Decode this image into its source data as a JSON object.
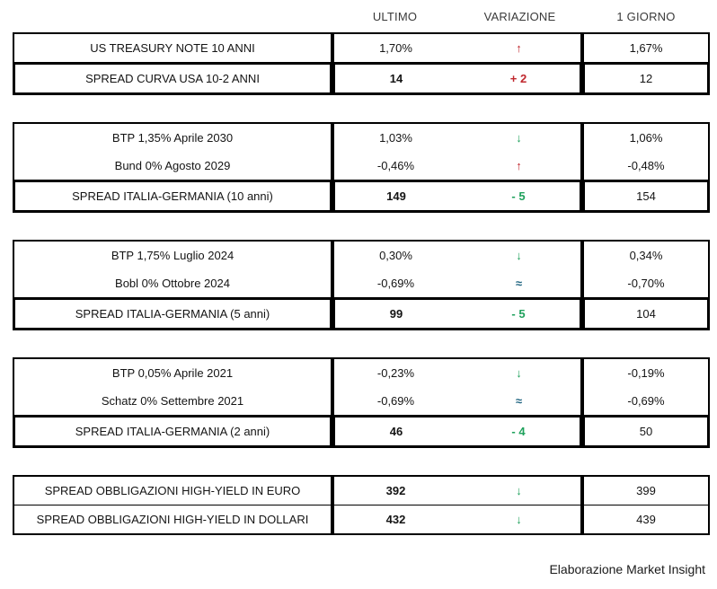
{
  "header": {
    "columns": [
      "ULTIMO",
      "VARIAZIONE",
      "1 GIORNO"
    ]
  },
  "colors": {
    "up": "#C0272D",
    "down": "#1FA15C",
    "flat": "#1F6480"
  },
  "groups": [
    {
      "rows": [
        {
          "label": "US TREASURY NOTE 10 ANNI",
          "ultimo": "1,70%",
          "variation": {
            "icon": "arrow-up-icon",
            "direction": "up"
          },
          "giorno": "1,67%",
          "spread": false
        },
        {
          "label": "SPREAD CURVA USA 10-2 ANNI",
          "ultimo": "14",
          "variation": {
            "value": "+ 2",
            "direction": "up"
          },
          "giorno": "12",
          "spread": true
        }
      ]
    },
    {
      "rows": [
        {
          "label": "BTP 1,35% Aprile 2030",
          "ultimo": "1,03%",
          "variation": {
            "icon": "arrow-down-icon",
            "direction": "down"
          },
          "giorno": "1,06%",
          "spread": false
        },
        {
          "label": "Bund 0% Agosto 2029",
          "ultimo": "-0,46%",
          "variation": {
            "icon": "arrow-up-icon",
            "direction": "up"
          },
          "giorno": "-0,48%",
          "spread": false
        },
        {
          "label": "SPREAD ITALIA-GERMANIA (10 anni)",
          "ultimo": "149",
          "variation": {
            "value": "- 5",
            "direction": "down"
          },
          "giorno": "154",
          "spread": true
        }
      ]
    },
    {
      "rows": [
        {
          "label": "BTP 1,75% Luglio 2024",
          "ultimo": "0,30%",
          "variation": {
            "icon": "arrow-down-icon",
            "direction": "down"
          },
          "giorno": "0,34%",
          "spread": false
        },
        {
          "label": "Bobl 0% Ottobre 2024",
          "ultimo": "-0,69%",
          "variation": {
            "icon": "approx-icon",
            "direction": "flat"
          },
          "giorno": "-0,70%",
          "spread": false
        },
        {
          "label": "SPREAD ITALIA-GERMANIA (5 anni)",
          "ultimo": "99",
          "variation": {
            "value": "- 5",
            "direction": "down"
          },
          "giorno": "104",
          "spread": true
        }
      ]
    },
    {
      "rows": [
        {
          "label": "BTP 0,05% Aprile 2021",
          "ultimo": "-0,23%",
          "variation": {
            "icon": "arrow-down-icon",
            "direction": "down"
          },
          "giorno": "-0,19%",
          "spread": false
        },
        {
          "label": "Schatz 0% Settembre 2021",
          "ultimo": "-0,69%",
          "variation": {
            "icon": "approx-icon",
            "direction": "flat"
          },
          "giorno": "-0,69%",
          "spread": false
        },
        {
          "label": "SPREAD ITALIA-GERMANIA (2 anni)",
          "ultimo": "46",
          "variation": {
            "value": "- 4",
            "direction": "down"
          },
          "giorno": "50",
          "spread": true
        }
      ]
    },
    {
      "rows": [
        {
          "label": "SPREAD OBBLIGAZIONI HIGH-YIELD IN EURO",
          "ultimo": "392",
          "variation": {
            "icon": "arrow-down-icon",
            "direction": "down"
          },
          "giorno": "399",
          "spread": true
        },
        {
          "label": "SPREAD OBBLIGAZIONI HIGH-YIELD IN DOLLARI",
          "ultimo": "432",
          "variation": {
            "icon": "arrow-down-icon",
            "direction": "down"
          },
          "giorno": "439",
          "spread": true
        }
      ]
    }
  ],
  "footer": "Elaborazione Market Insight",
  "chart_data": {
    "type": "table",
    "columns": [
      "",
      "ULTIMO",
      "VARIAZIONE",
      "1 GIORNO"
    ],
    "rows": [
      [
        "US TREASURY NOTE 10 ANNI",
        "1,70%",
        "up",
        "1,67%"
      ],
      [
        "SPREAD CURVA USA 10-2 ANNI",
        "14",
        "+ 2",
        "12"
      ],
      [
        "BTP 1,35% Aprile 2030",
        "1,03%",
        "down",
        "1,06%"
      ],
      [
        "Bund 0% Agosto 2029",
        "-0,46%",
        "up",
        "-0,48%"
      ],
      [
        "SPREAD ITALIA-GERMANIA (10 anni)",
        "149",
        "- 5",
        "154"
      ],
      [
        "BTP 1,75% Luglio 2024",
        "0,30%",
        "down",
        "0,34%"
      ],
      [
        "Bobl 0% Ottobre 2024",
        "-0,69%",
        "flat",
        "-0,70%"
      ],
      [
        "SPREAD ITALIA-GERMANIA (5 anni)",
        "99",
        "- 5",
        "104"
      ],
      [
        "BTP 0,05% Aprile 2021",
        "-0,23%",
        "down",
        "-0,19%"
      ],
      [
        "Schatz 0% Settembre 2021",
        "-0,69%",
        "flat",
        "-0,69%"
      ],
      [
        "SPREAD ITALIA-GERMANIA (2 anni)",
        "46",
        "- 4",
        "50"
      ],
      [
        "SPREAD OBBLIGAZIONI HIGH-YIELD IN EURO",
        "392",
        "down",
        "399"
      ],
      [
        "SPREAD OBBLIGAZIONI HIGH-YIELD IN DOLLARI",
        "432",
        "down",
        "439"
      ]
    ],
    "title": "",
    "source_note": "Elaborazione Market Insight"
  }
}
